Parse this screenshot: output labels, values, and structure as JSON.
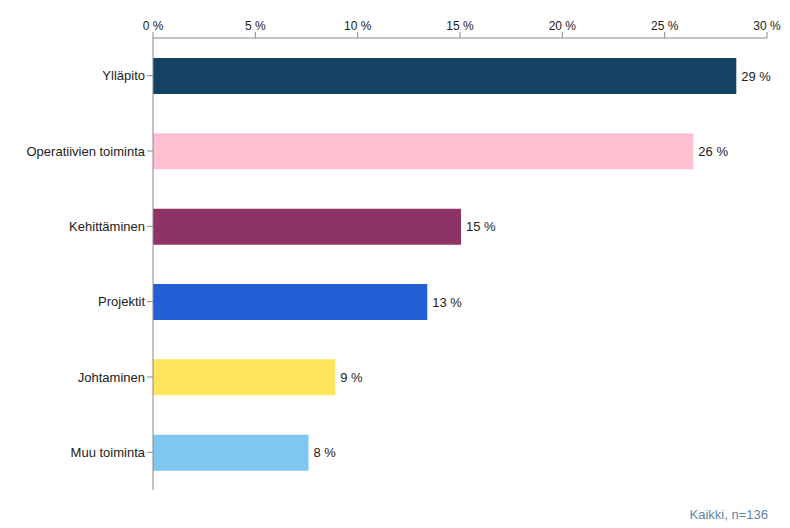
{
  "chart_data": {
    "type": "bar",
    "orientation": "horizontal",
    "categories": [
      "Ylläpito",
      "Operatiivien toiminta",
      "Kehittäminen",
      "Projektit",
      "Johtaminen",
      "Muu toiminta"
    ],
    "values": [
      28.5,
      26.4,
      15.05,
      13.4,
      8.9,
      7.6
    ],
    "value_labels": [
      "29 %",
      "26 %",
      "15 %",
      "13 %",
      "9 %",
      "8 %"
    ],
    "data_labels": true,
    "colors": [
      "#134263",
      "#ffc0cf",
      "#8e3366",
      "#245ed4",
      "#ffe45c",
      "#7fc6f0"
    ],
    "xlim": [
      0,
      30
    ],
    "xticks": [
      {
        "value": 0,
        "label": "0 %"
      },
      {
        "value": 5,
        "label": "5 %"
      },
      {
        "value": 10,
        "label": "10 %"
      },
      {
        "value": 15,
        "label": "15 %"
      },
      {
        "value": 20,
        "label": "20 %"
      },
      {
        "value": 25,
        "label": "25 %"
      },
      {
        "value": 30,
        "label": "30 %"
      }
    ],
    "grid": false,
    "annotations": [
      "Kaikki, n=136"
    ]
  }
}
